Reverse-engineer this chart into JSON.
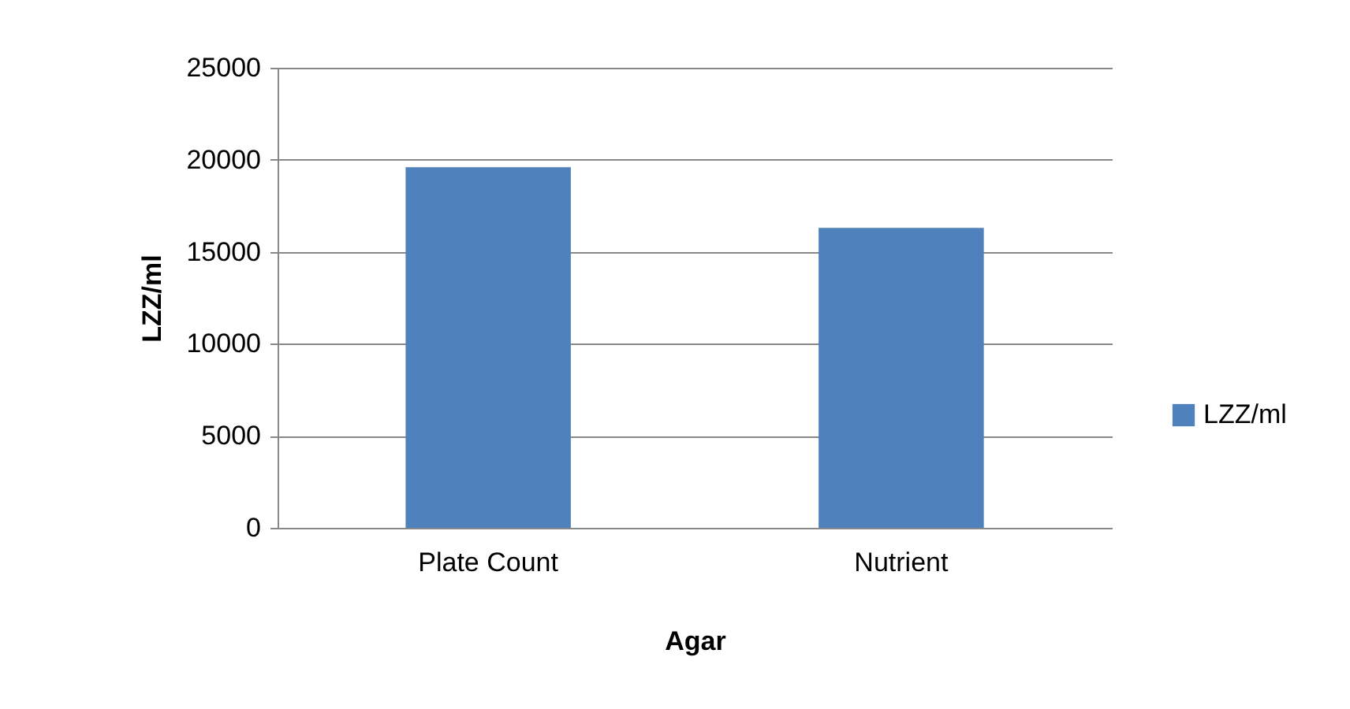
{
  "chart_data": {
    "type": "bar",
    "xlabel": "Agar",
    "ylabel": "LZZ/ml",
    "categories": [
      "Plate Count",
      "Nutrient"
    ],
    "series": [
      {
        "name": "LZZ/ml",
        "color": "#4f81bd",
        "values": [
          19600,
          16300
        ]
      }
    ],
    "ylim": [
      0,
      25000
    ],
    "yticks": [
      0,
      5000,
      10000,
      15000,
      20000,
      25000
    ],
    "grid": "y",
    "legend": "right"
  }
}
